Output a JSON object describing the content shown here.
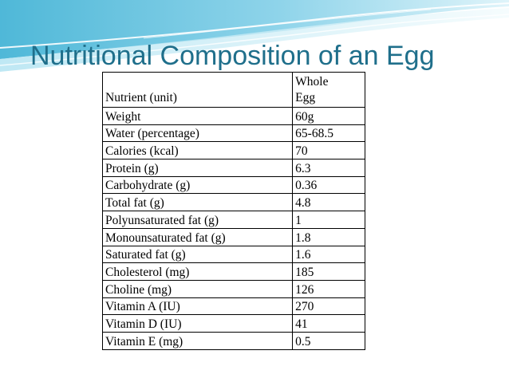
{
  "slide": {
    "title": "Nutritional Composition of an Egg"
  },
  "table": {
    "header": {
      "col1": "Nutrient (unit)",
      "col2_line1": "Whole",
      "col2_line2": "Egg"
    },
    "rows": [
      {
        "nutrient": "Weight",
        "value": "60g"
      },
      {
        "nutrient": "Water (percentage)",
        "value": "65-68.5"
      },
      {
        "nutrient": "Calories (kcal)",
        "value": "70"
      },
      {
        "nutrient": "Protein (g)",
        "value": "6.3"
      },
      {
        "nutrient": "Carbohydrate (g)",
        "value": "0.36"
      },
      {
        "nutrient": "Total fat (g)",
        "value": "4.8"
      },
      {
        "nutrient": "Polyunsaturated fat (g)",
        "value": "1"
      },
      {
        "nutrient": "Monounsaturated fat (g)",
        "value": "1.8"
      },
      {
        "nutrient": "Saturated fat (g)",
        "value": "1.6"
      },
      {
        "nutrient": "Cholesterol (mg)",
        "value": "185"
      },
      {
        "nutrient": "Choline (mg)",
        "value": "126"
      },
      {
        "nutrient": "Vitamin A (IU)",
        "value": "270"
      },
      {
        "nutrient": "Vitamin D (IU)",
        "value": "41"
      },
      {
        "nutrient": "Vitamin E (mg)",
        "value": "0.5"
      }
    ]
  },
  "theme": {
    "title_color": "#1f6f8b",
    "wave_colors": [
      "#5bc0de",
      "#9fdcef",
      "#d4f1f9"
    ]
  }
}
